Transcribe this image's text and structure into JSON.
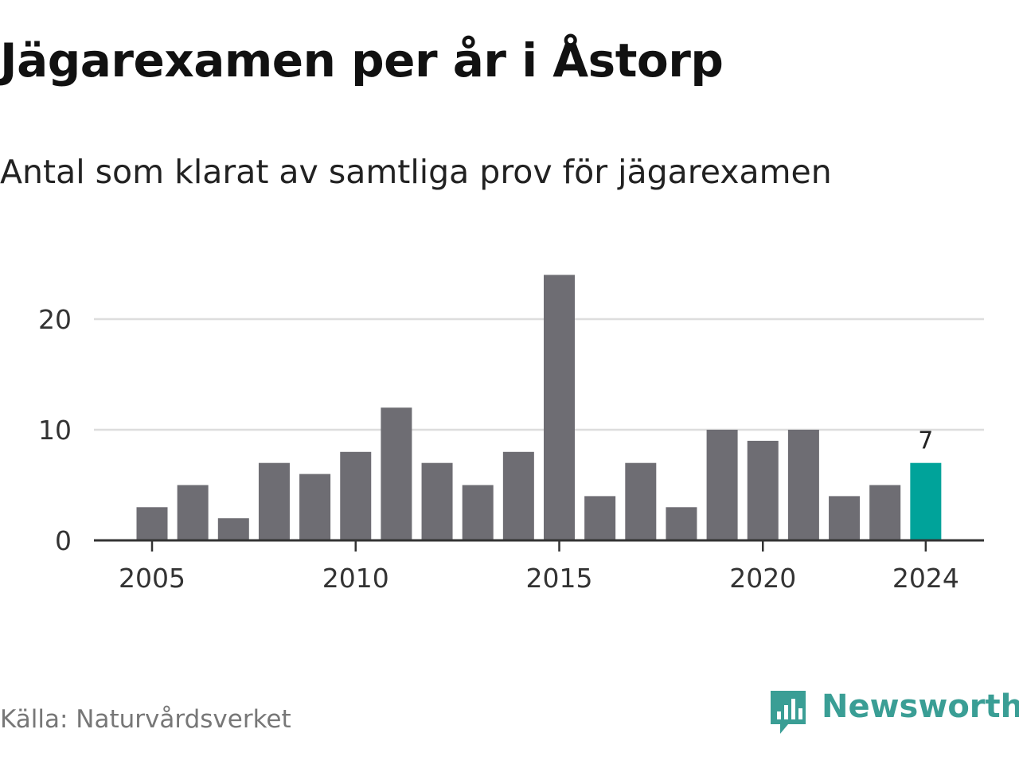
{
  "title": "Jägarexamen per år i Åstorp",
  "subtitle": "Antal som klarat av samtliga prov för jägarexamen",
  "source": "Källa: Naturvårdsverket",
  "brand": {
    "name": "Newsworthy",
    "color": "#3a9e95",
    "icon": "newsworthy-logo-icon"
  },
  "colors": {
    "bar": "#6e6d73",
    "highlight": "#00a39a",
    "grid": "#dddddd",
    "axis": "#333333"
  },
  "chart_data": {
    "type": "bar",
    "categories": [
      2005,
      2006,
      2007,
      2008,
      2009,
      2010,
      2011,
      2012,
      2013,
      2014,
      2015,
      2016,
      2017,
      2018,
      2019,
      2020,
      2021,
      2022,
      2023,
      2024
    ],
    "values": [
      3,
      5,
      2,
      7,
      6,
      8,
      12,
      7,
      5,
      8,
      24,
      4,
      7,
      3,
      10,
      9,
      10,
      4,
      5,
      7
    ],
    "title": "Jägarexamen per år i Åstorp",
    "subtitle": "Antal som klarat av samtliga prov för jägarexamen",
    "xlabel": "",
    "ylabel": "",
    "ylim": [
      0,
      24
    ],
    "y_ticks": [
      0,
      10,
      20
    ],
    "x_ticks": [
      2005,
      2010,
      2015,
      2020,
      2024
    ],
    "highlight_category": 2024,
    "data_labels": [
      {
        "category": 2024,
        "label": "7"
      }
    ],
    "grid": true,
    "legend": "none"
  }
}
